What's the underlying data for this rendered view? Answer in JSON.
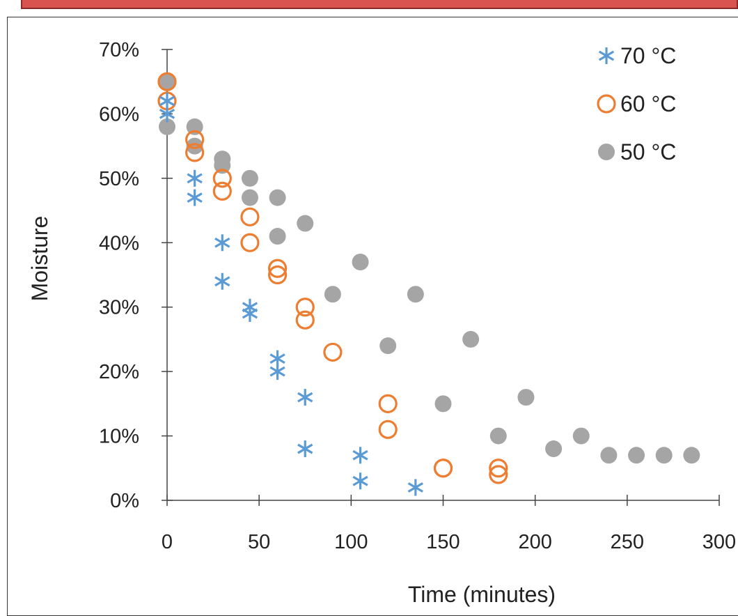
{
  "chart_data": {
    "type": "scatter",
    "title": "",
    "xlabel": "Time (minutes)",
    "ylabel": "Moisture",
    "xlim": [
      0,
      300
    ],
    "ylim": [
      0,
      0.7
    ],
    "xticks": [
      0,
      50,
      100,
      150,
      200,
      250,
      300
    ],
    "yticks": [
      0,
      0.1,
      0.2,
      0.3,
      0.4,
      0.5,
      0.6,
      0.7
    ],
    "x_tick_labels": [
      "0",
      "50",
      "100",
      "150",
      "200",
      "250",
      "300"
    ],
    "y_tick_labels": [
      "0%",
      "10%",
      "20%",
      "30%",
      "40%",
      "50%",
      "60%",
      "70%"
    ],
    "grid": false,
    "legend_position": "top-right",
    "series": [
      {
        "name": "70 °C",
        "color": "#5b9bd5",
        "marker": "asterisk",
        "x": [
          0,
          0,
          15,
          15,
          30,
          30,
          45,
          45,
          60,
          60,
          75,
          75,
          105,
          105,
          135
        ],
        "y": [
          0.62,
          0.6,
          0.5,
          0.47,
          0.4,
          0.34,
          0.3,
          0.29,
          0.22,
          0.2,
          0.16,
          0.08,
          0.07,
          0.03,
          0.02
        ]
      },
      {
        "name": "60 °C",
        "color": "#ed7d31",
        "marker": "open-circle",
        "x": [
          0,
          0,
          15,
          15,
          30,
          30,
          45,
          45,
          60,
          60,
          75,
          75,
          90,
          120,
          120,
          150,
          150,
          180,
          180
        ],
        "y": [
          0.65,
          0.62,
          0.56,
          0.54,
          0.5,
          0.48,
          0.44,
          0.4,
          0.36,
          0.35,
          0.3,
          0.28,
          0.23,
          0.15,
          0.11,
          0.05,
          0.05,
          0.05,
          0.04
        ]
      },
      {
        "name": "50 °C",
        "color": "#a5a5a5",
        "marker": "filled-circle",
        "x": [
          0,
          0,
          15,
          15,
          30,
          30,
          45,
          45,
          60,
          60,
          75,
          90,
          105,
          120,
          135,
          150,
          165,
          180,
          195,
          210,
          225,
          240,
          255,
          270,
          285
        ],
        "y": [
          0.65,
          0.58,
          0.58,
          0.55,
          0.53,
          0.52,
          0.5,
          0.47,
          0.47,
          0.41,
          0.43,
          0.32,
          0.37,
          0.24,
          0.32,
          0.15,
          0.25,
          0.1,
          0.16,
          0.08,
          0.1,
          0.07,
          0.07,
          0.07,
          0.07
        ]
      }
    ]
  }
}
